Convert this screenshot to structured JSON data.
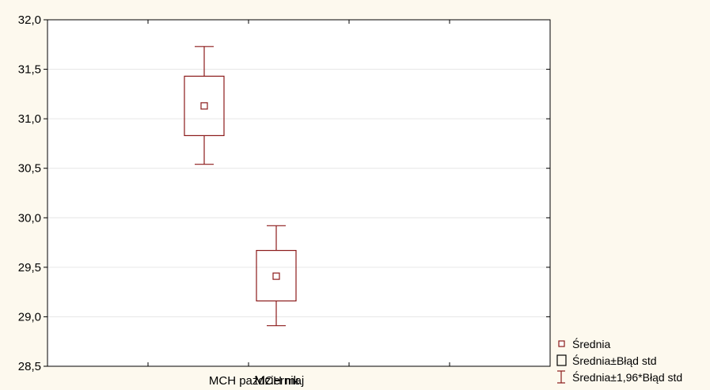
{
  "chart_data": {
    "type": "box",
    "title": "",
    "xlabel": "",
    "ylabel": "",
    "categories": [
      "MCH październik",
      "MCH maj"
    ],
    "ylim": [
      28.5,
      32.0
    ],
    "yticks": [
      "28,5",
      "29,0",
      "29,5",
      "30,0",
      "30,5",
      "31,0",
      "31,5",
      "32,0"
    ],
    "grid": true,
    "series": [
      {
        "mean": 31.13,
        "se_low": 30.83,
        "se_high": 31.43,
        "ci_low": 30.54,
        "ci_high": 31.73
      },
      {
        "mean": 29.41,
        "se_low": 29.16,
        "se_high": 29.67,
        "ci_low": 28.91,
        "ci_high": 29.92
      }
    ],
    "legend": {
      "position": "bottom-right",
      "items": [
        "Średnia",
        "Średnia±Błąd std",
        "Średnia±1,96*Błąd std"
      ]
    },
    "colors": {
      "mark": "#8b1a1a",
      "grid": "#e6e6e6",
      "background": "#fdf9ee",
      "plot_background": "#ffffff"
    }
  }
}
